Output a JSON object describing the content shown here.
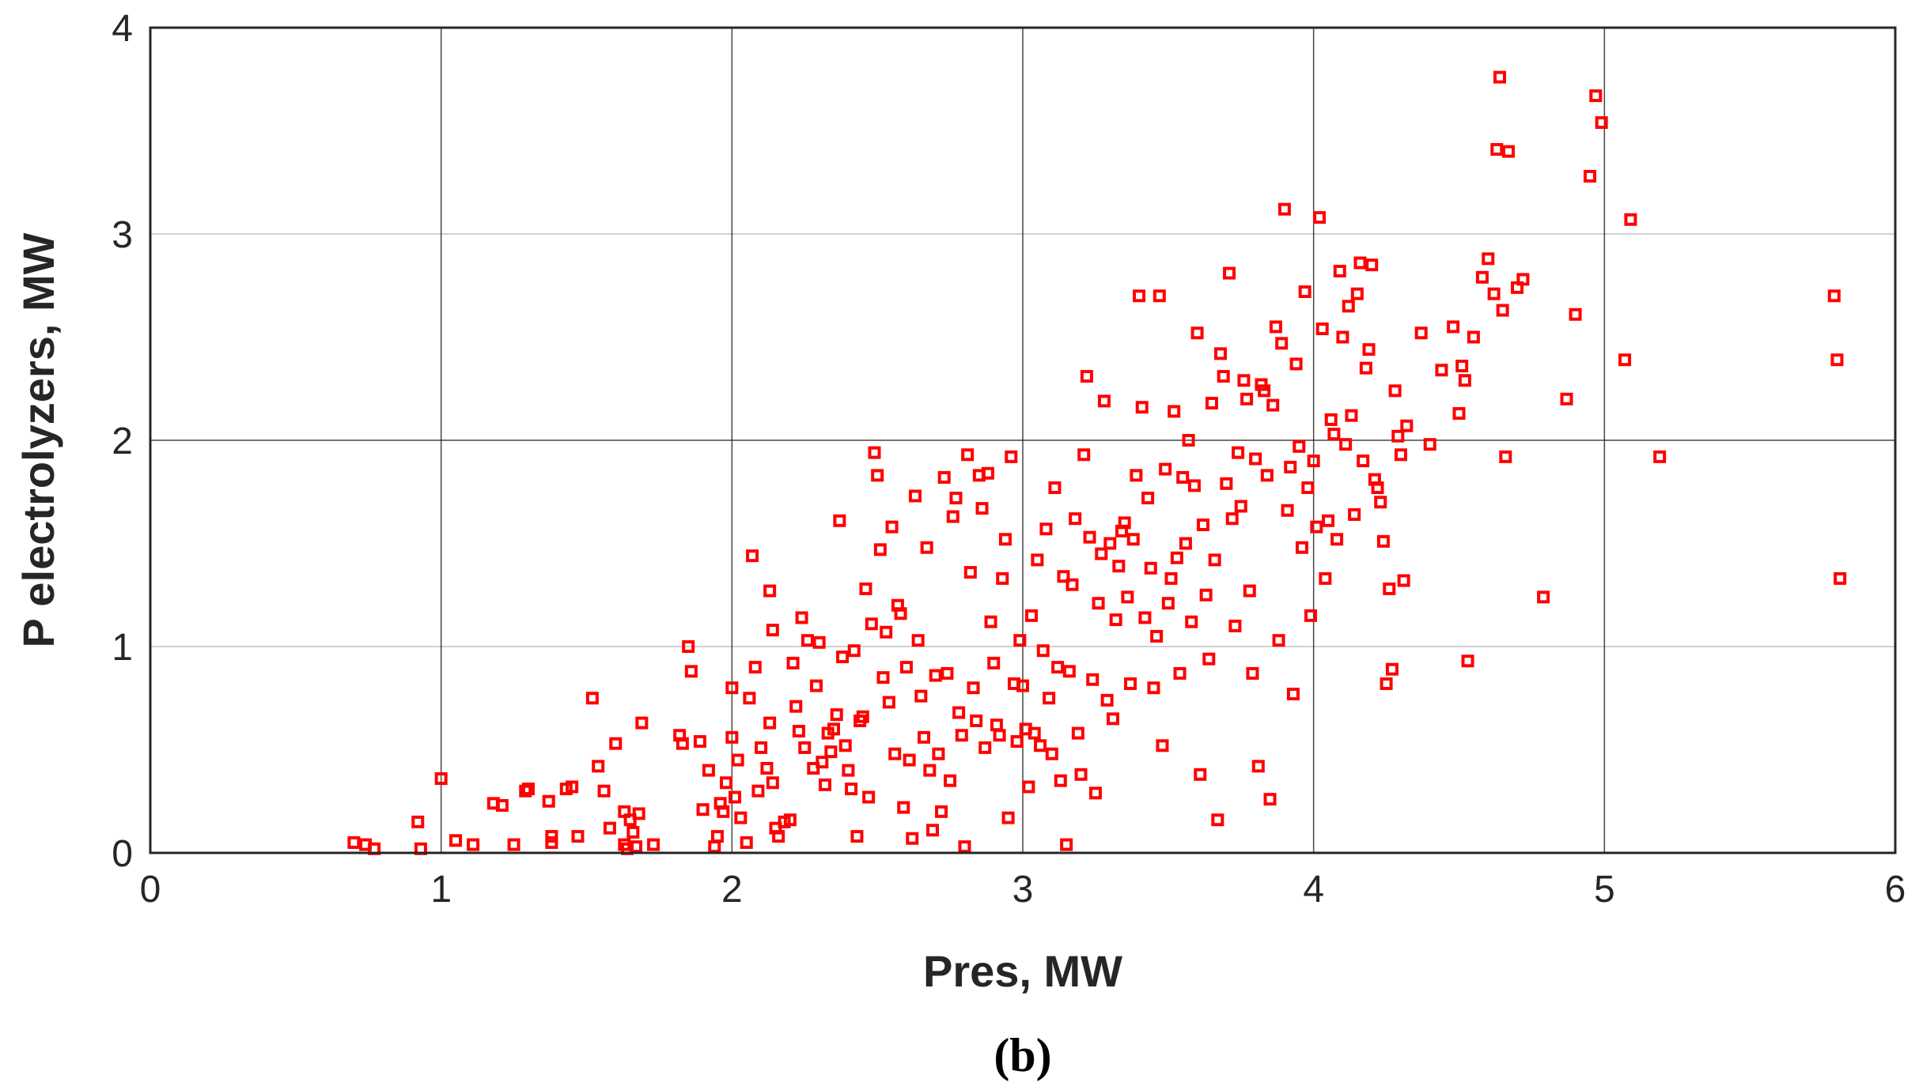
{
  "chart_data": {
    "type": "scatter",
    "title": "",
    "xlabel": "Pres, MW",
    "ylabel": "P electrolyzers, MW",
    "xlim": [
      0,
      6
    ],
    "ylim": [
      0,
      4
    ],
    "xticks": [
      "0",
      "1",
      "2",
      "3",
      "4",
      "5",
      "6"
    ],
    "yticks": [
      "0",
      "1",
      "2",
      "3",
      "4"
    ],
    "grid": true,
    "marker": "square",
    "colors": {
      "marker": "#ff0000",
      "grid": "#262626",
      "axis": "#262626"
    },
    "caption": "(b)",
    "points": [
      [
        0.7,
        0.05
      ],
      [
        0.74,
        0.04
      ],
      [
        0.77,
        0.02
      ],
      [
        0.92,
        0.15
      ],
      [
        0.93,
        0.02
      ],
      [
        1.0,
        0.36
      ],
      [
        1.05,
        0.06
      ],
      [
        1.11,
        0.04
      ],
      [
        1.18,
        0.24
      ],
      [
        1.21,
        0.23
      ],
      [
        1.25,
        0.04
      ],
      [
        1.29,
        0.3
      ],
      [
        1.3,
        0.31
      ],
      [
        1.37,
        0.25
      ],
      [
        1.38,
        0.08
      ],
      [
        1.38,
        0.05
      ],
      [
        1.43,
        0.31
      ],
      [
        1.45,
        0.32
      ],
      [
        1.47,
        0.08
      ],
      [
        1.52,
        0.75
      ],
      [
        1.54,
        0.42
      ],
      [
        1.56,
        0.3
      ],
      [
        1.58,
        0.12
      ],
      [
        1.6,
        0.53
      ],
      [
        1.63,
        0.2
      ],
      [
        1.63,
        0.04
      ],
      [
        1.64,
        0.02
      ],
      [
        1.65,
        0.16
      ],
      [
        1.66,
        0.1
      ],
      [
        1.67,
        0.03
      ],
      [
        1.68,
        0.19
      ],
      [
        1.69,
        0.63
      ],
      [
        1.73,
        0.04
      ],
      [
        1.82,
        0.57
      ],
      [
        1.83,
        0.53
      ],
      [
        1.85,
        1.0
      ],
      [
        1.86,
        0.88
      ],
      [
        1.89,
        0.54
      ],
      [
        1.9,
        0.21
      ],
      [
        1.92,
        0.4
      ],
      [
        1.94,
        0.03
      ],
      [
        1.95,
        0.08
      ],
      [
        1.96,
        0.24
      ],
      [
        1.97,
        0.2
      ],
      [
        1.98,
        0.34
      ],
      [
        2.0,
        0.8
      ],
      [
        2.0,
        0.56
      ],
      [
        2.01,
        0.27
      ],
      [
        2.02,
        0.45
      ],
      [
        2.03,
        0.17
      ],
      [
        2.05,
        0.05
      ],
      [
        2.06,
        0.75
      ],
      [
        2.07,
        1.44
      ],
      [
        2.08,
        0.9
      ],
      [
        2.09,
        0.3
      ],
      [
        2.1,
        0.51
      ],
      [
        2.12,
        0.41
      ],
      [
        2.13,
        1.27
      ],
      [
        2.13,
        0.63
      ],
      [
        2.14,
        1.08
      ],
      [
        2.14,
        0.34
      ],
      [
        2.15,
        0.12
      ],
      [
        2.16,
        0.08
      ],
      [
        2.18,
        0.15
      ],
      [
        2.2,
        0.16
      ],
      [
        2.21,
        0.92
      ],
      [
        2.22,
        0.71
      ],
      [
        2.23,
        0.59
      ],
      [
        2.24,
        1.14
      ],
      [
        2.25,
        0.51
      ],
      [
        2.26,
        1.03
      ],
      [
        2.28,
        0.41
      ],
      [
        2.29,
        0.81
      ],
      [
        2.3,
        1.02
      ],
      [
        2.31,
        0.44
      ],
      [
        2.32,
        0.33
      ],
      [
        2.33,
        0.58
      ],
      [
        2.34,
        0.49
      ],
      [
        2.35,
        0.6
      ],
      [
        2.36,
        0.67
      ],
      [
        2.37,
        1.61
      ],
      [
        2.38,
        0.95
      ],
      [
        2.39,
        0.52
      ],
      [
        2.4,
        0.4
      ],
      [
        2.41,
        0.31
      ],
      [
        2.42,
        0.98
      ],
      [
        2.43,
        0.08
      ],
      [
        2.44,
        0.64
      ],
      [
        2.45,
        0.66
      ],
      [
        2.46,
        1.28
      ],
      [
        2.47,
        0.27
      ],
      [
        2.48,
        1.11
      ],
      [
        2.49,
        1.94
      ],
      [
        2.5,
        1.83
      ],
      [
        2.51,
        1.47
      ],
      [
        2.52,
        0.85
      ],
      [
        2.53,
        1.07
      ],
      [
        2.54,
        0.73
      ],
      [
        2.55,
        1.58
      ],
      [
        2.56,
        0.48
      ],
      [
        2.57,
        1.2
      ],
      [
        2.58,
        1.16
      ],
      [
        2.59,
        0.22
      ],
      [
        2.6,
        0.9
      ],
      [
        2.61,
        0.45
      ],
      [
        2.62,
        0.07
      ],
      [
        2.63,
        1.73
      ],
      [
        2.64,
        1.03
      ],
      [
        2.65,
        0.76
      ],
      [
        2.66,
        0.56
      ],
      [
        2.67,
        1.48
      ],
      [
        2.68,
        0.4
      ],
      [
        2.69,
        0.11
      ],
      [
        2.7,
        0.86
      ],
      [
        2.71,
        0.48
      ],
      [
        2.72,
        0.2
      ],
      [
        2.73,
        1.82
      ],
      [
        2.74,
        0.87
      ],
      [
        2.75,
        0.35
      ],
      [
        2.76,
        1.63
      ],
      [
        2.77,
        1.72
      ],
      [
        2.78,
        0.68
      ],
      [
        2.79,
        0.57
      ],
      [
        2.8,
        0.03
      ],
      [
        2.81,
        1.93
      ],
      [
        2.82,
        1.36
      ],
      [
        2.83,
        0.8
      ],
      [
        2.84,
        0.64
      ],
      [
        2.85,
        1.83
      ],
      [
        2.86,
        1.67
      ],
      [
        2.87,
        0.51
      ],
      [
        2.88,
        1.84
      ],
      [
        2.89,
        1.12
      ],
      [
        2.9,
        0.92
      ],
      [
        2.91,
        0.62
      ],
      [
        2.92,
        0.57
      ],
      [
        2.93,
        1.33
      ],
      [
        2.94,
        1.52
      ],
      [
        2.95,
        0.17
      ],
      [
        2.96,
        1.92
      ],
      [
        2.97,
        0.82
      ],
      [
        2.98,
        0.54
      ],
      [
        2.99,
        1.03
      ],
      [
        3.0,
        0.81
      ],
      [
        3.01,
        0.6
      ],
      [
        3.02,
        0.32
      ],
      [
        3.03,
        1.15
      ],
      [
        3.04,
        0.58
      ],
      [
        3.05,
        1.42
      ],
      [
        3.06,
        0.52
      ],
      [
        3.07,
        0.98
      ],
      [
        3.08,
        1.57
      ],
      [
        3.09,
        0.75
      ],
      [
        3.1,
        0.48
      ],
      [
        3.11,
        1.77
      ],
      [
        3.12,
        0.9
      ],
      [
        3.13,
        0.35
      ],
      [
        3.14,
        1.34
      ],
      [
        3.15,
        0.04
      ],
      [
        3.16,
        0.88
      ],
      [
        3.17,
        1.3
      ],
      [
        3.18,
        1.62
      ],
      [
        3.19,
        0.58
      ],
      [
        3.2,
        0.38
      ],
      [
        3.21,
        1.93
      ],
      [
        3.22,
        2.31
      ],
      [
        3.23,
        1.53
      ],
      [
        3.24,
        0.84
      ],
      [
        3.25,
        0.29
      ],
      [
        3.26,
        1.21
      ],
      [
        3.27,
        1.45
      ],
      [
        3.28,
        2.19
      ],
      [
        3.29,
        0.74
      ],
      [
        3.3,
        1.5
      ],
      [
        3.31,
        0.65
      ],
      [
        3.32,
        1.13
      ],
      [
        3.33,
        1.39
      ],
      [
        3.34,
        1.56
      ],
      [
        3.35,
        1.6
      ],
      [
        3.36,
        1.24
      ],
      [
        3.37,
        0.82
      ],
      [
        3.38,
        1.52
      ],
      [
        3.39,
        1.83
      ],
      [
        3.4,
        2.7
      ],
      [
        3.41,
        2.16
      ],
      [
        3.42,
        1.14
      ],
      [
        3.43,
        1.72
      ],
      [
        3.44,
        1.38
      ],
      [
        3.45,
        0.8
      ],
      [
        3.46,
        1.05
      ],
      [
        3.47,
        2.7
      ],
      [
        3.48,
        0.52
      ],
      [
        3.49,
        1.86
      ],
      [
        3.5,
        1.21
      ],
      [
        3.51,
        1.33
      ],
      [
        3.52,
        2.14
      ],
      [
        3.53,
        1.43
      ],
      [
        3.54,
        0.87
      ],
      [
        3.55,
        1.82
      ],
      [
        3.56,
        1.5
      ],
      [
        3.57,
        2.0
      ],
      [
        3.58,
        1.12
      ],
      [
        3.59,
        1.78
      ],
      [
        3.6,
        2.52
      ],
      [
        3.61,
        0.38
      ],
      [
        3.62,
        1.59
      ],
      [
        3.63,
        1.25
      ],
      [
        3.64,
        0.94
      ],
      [
        3.65,
        2.18
      ],
      [
        3.66,
        1.42
      ],
      [
        3.67,
        0.16
      ],
      [
        3.68,
        2.42
      ],
      [
        3.69,
        2.31
      ],
      [
        3.7,
        1.79
      ],
      [
        3.71,
        2.81
      ],
      [
        3.72,
        1.62
      ],
      [
        3.73,
        1.1
      ],
      [
        3.74,
        1.94
      ],
      [
        3.75,
        1.68
      ],
      [
        3.76,
        2.29
      ],
      [
        3.77,
        2.2
      ],
      [
        3.78,
        1.27
      ],
      [
        3.79,
        0.87
      ],
      [
        3.8,
        1.91
      ],
      [
        3.81,
        0.42
      ],
      [
        3.82,
        2.27
      ],
      [
        3.83,
        2.24
      ],
      [
        3.84,
        1.83
      ],
      [
        3.85,
        0.26
      ],
      [
        3.86,
        2.17
      ],
      [
        3.87,
        2.55
      ],
      [
        3.88,
        1.03
      ],
      [
        3.89,
        2.47
      ],
      [
        3.9,
        3.12
      ],
      [
        3.91,
        1.66
      ],
      [
        3.92,
        1.87
      ],
      [
        3.93,
        0.77
      ],
      [
        3.94,
        2.37
      ],
      [
        3.95,
        1.97
      ],
      [
        3.96,
        1.48
      ],
      [
        3.97,
        2.72
      ],
      [
        3.98,
        1.77
      ],
      [
        3.99,
        1.15
      ],
      [
        4.0,
        1.9
      ],
      [
        4.01,
        1.58
      ],
      [
        4.02,
        3.08
      ],
      [
        4.03,
        2.54
      ],
      [
        4.04,
        1.33
      ],
      [
        4.05,
        1.61
      ],
      [
        4.06,
        2.1
      ],
      [
        4.07,
        2.03
      ],
      [
        4.08,
        1.52
      ],
      [
        4.09,
        2.82
      ],
      [
        4.1,
        2.5
      ],
      [
        4.11,
        1.98
      ],
      [
        4.12,
        2.65
      ],
      [
        4.13,
        2.12
      ],
      [
        4.14,
        1.64
      ],
      [
        4.15,
        2.71
      ],
      [
        4.16,
        2.86
      ],
      [
        4.17,
        1.9
      ],
      [
        4.18,
        2.35
      ],
      [
        4.19,
        2.44
      ],
      [
        4.2,
        2.85
      ],
      [
        4.21,
        1.81
      ],
      [
        4.22,
        1.77
      ],
      [
        4.23,
        1.7
      ],
      [
        4.24,
        1.51
      ],
      [
        4.25,
        0.82
      ],
      [
        4.26,
        1.28
      ],
      [
        4.27,
        0.89
      ],
      [
        4.28,
        2.24
      ],
      [
        4.29,
        2.02
      ],
      [
        4.3,
        1.93
      ],
      [
        4.31,
        1.32
      ],
      [
        4.32,
        2.07
      ],
      [
        4.37,
        2.52
      ],
      [
        4.4,
        1.98
      ],
      [
        4.44,
        2.34
      ],
      [
        4.48,
        2.55
      ],
      [
        4.5,
        2.13
      ],
      [
        4.51,
        2.36
      ],
      [
        4.52,
        2.29
      ],
      [
        4.53,
        0.93
      ],
      [
        4.55,
        2.5
      ],
      [
        4.58,
        2.79
      ],
      [
        4.6,
        2.88
      ],
      [
        4.62,
        2.71
      ],
      [
        4.63,
        3.41
      ],
      [
        4.64,
        3.76
      ],
      [
        4.65,
        2.63
      ],
      [
        4.66,
        1.92
      ],
      [
        4.67,
        3.4
      ],
      [
        4.7,
        2.74
      ],
      [
        4.72,
        2.78
      ],
      [
        4.79,
        1.24
      ],
      [
        4.87,
        2.2
      ],
      [
        4.9,
        2.61
      ],
      [
        4.95,
        3.28
      ],
      [
        4.97,
        3.67
      ],
      [
        4.99,
        3.54
      ],
      [
        5.07,
        2.39
      ],
      [
        5.09,
        3.07
      ],
      [
        5.19,
        1.92
      ],
      [
        5.79,
        2.7
      ],
      [
        5.8,
        2.39
      ],
      [
        5.81,
        1.33
      ]
    ]
  }
}
